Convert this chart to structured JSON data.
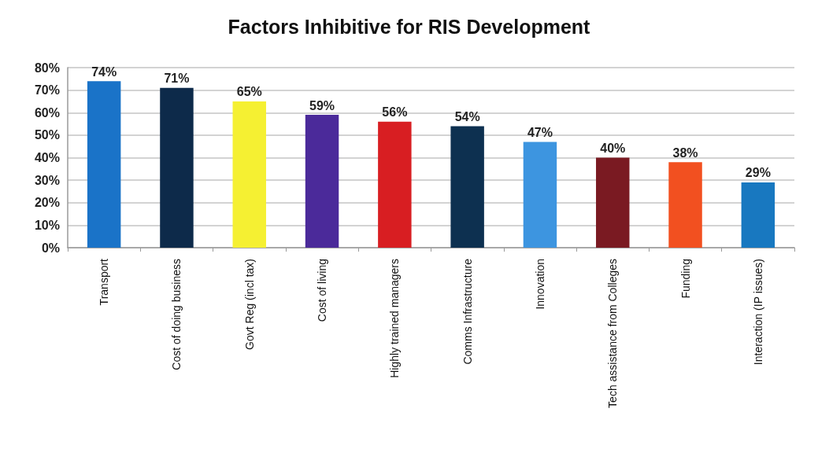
{
  "chart_data": {
    "type": "bar",
    "title": "Factors Inhibitive for RIS Development",
    "categories": [
      "Transport",
      "Cost of doing business",
      "Govt Reg (incl tax)",
      "Cost of living",
      "Highly trained managers",
      "Comms Infrastructure",
      "Innovation",
      "Tech assistance from Colleges",
      "Funding",
      "Interaction (IP issues)"
    ],
    "values": [
      74,
      71,
      65,
      59,
      56,
      54,
      47,
      40,
      38,
      29
    ],
    "value_labels": [
      "74%",
      "71%",
      "65%",
      "59%",
      "56%",
      "54%",
      "47%",
      "40%",
      "38%",
      "29%"
    ],
    "colors": [
      "#1a73c8",
      "#0d2a4a",
      "#f5f032",
      "#4b2a9a",
      "#d81e22",
      "#0d3050",
      "#3d95e0",
      "#7a1a22",
      "#f25020",
      "#1878c0"
    ],
    "ylim": [
      0,
      80
    ],
    "yticks": [
      {
        "value": 0,
        "label": "0%"
      },
      {
        "value": 10,
        "label": "10%"
      },
      {
        "value": 20,
        "label": "20%"
      },
      {
        "value": 30,
        "label": "30%"
      },
      {
        "value": 40,
        "label": "40%"
      },
      {
        "value": 50,
        "label": "50%"
      },
      {
        "value": 60,
        "label": "60%"
      },
      {
        "value": 70,
        "label": "70%"
      },
      {
        "value": 80,
        "label": "80%"
      }
    ],
    "grid": "y"
  }
}
